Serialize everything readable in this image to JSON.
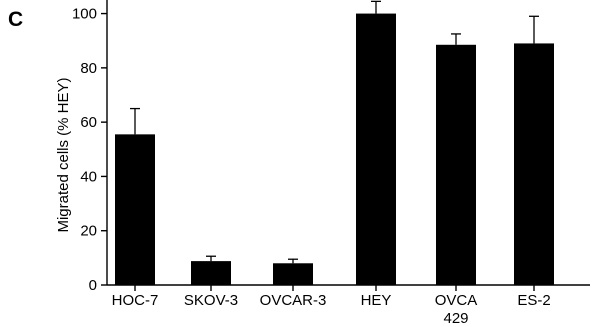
{
  "panel_label": "C",
  "chart_data": {
    "type": "bar",
    "categories": [
      "HOC-7",
      "SKOV-3",
      "OVCAR-3",
      "HEY",
      "OVCA\n429",
      "ES-2"
    ],
    "values": [
      55.5,
      8.8,
      8.0,
      100,
      88.5,
      89
    ],
    "errors": [
      9.5,
      1.8,
      1.5,
      4.5,
      4.0,
      10
    ],
    "title": "",
    "xlabel": "",
    "ylabel": "Migrated cells (% HEY)",
    "ylim": [
      0,
      105
    ],
    "yticks": [
      0,
      20,
      40,
      60,
      80,
      100
    ],
    "bar_color": "#000000",
    "grid": false,
    "legend": "none"
  }
}
